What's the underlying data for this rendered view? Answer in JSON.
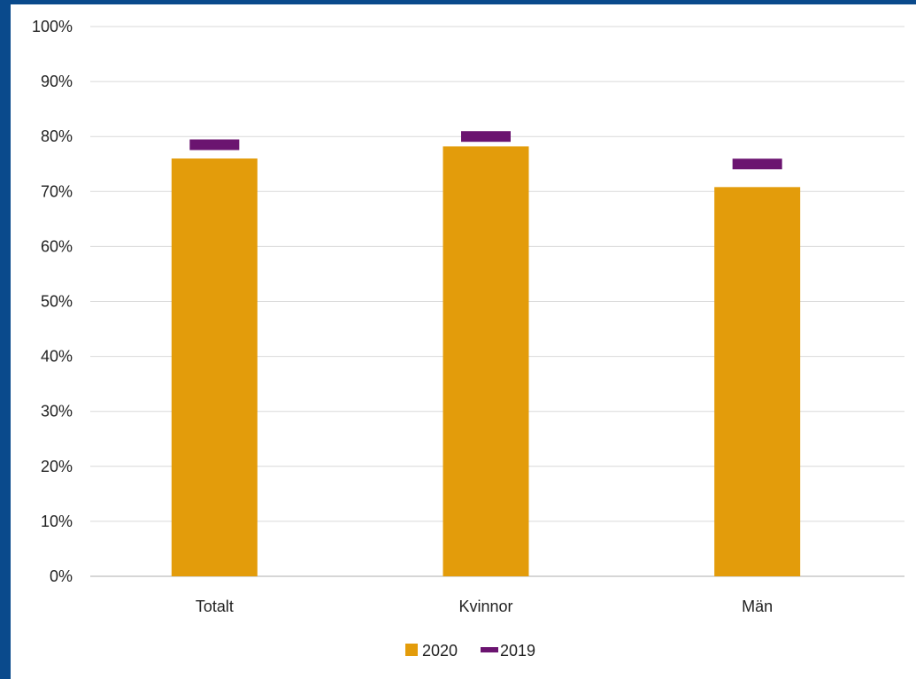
{
  "chart_data": {
    "type": "bar",
    "categories": [
      "Totalt",
      "Kvinnor",
      "Män"
    ],
    "series": [
      {
        "name": "2020",
        "kind": "bar",
        "color": "#e39c0b",
        "values": [
          76,
          78.2,
          70.8
        ]
      },
      {
        "name": "2019",
        "kind": "marker",
        "color": "#6b1470",
        "values": [
          78.5,
          80,
          75
        ]
      }
    ],
    "y_ticks": [
      "0%",
      "10%",
      "20%",
      "30%",
      "40%",
      "50%",
      "60%",
      "70%",
      "80%",
      "90%",
      "100%"
    ],
    "ylim": [
      0,
      100
    ],
    "grid": true,
    "legend_position": "bottom",
    "legend": [
      {
        "label": "2020",
        "color": "#e39c0b",
        "symbol": "square"
      },
      {
        "label": "2019",
        "color": "#6b1470",
        "symbol": "dash"
      }
    ],
    "background_border_color": "#0a4a8c"
  }
}
